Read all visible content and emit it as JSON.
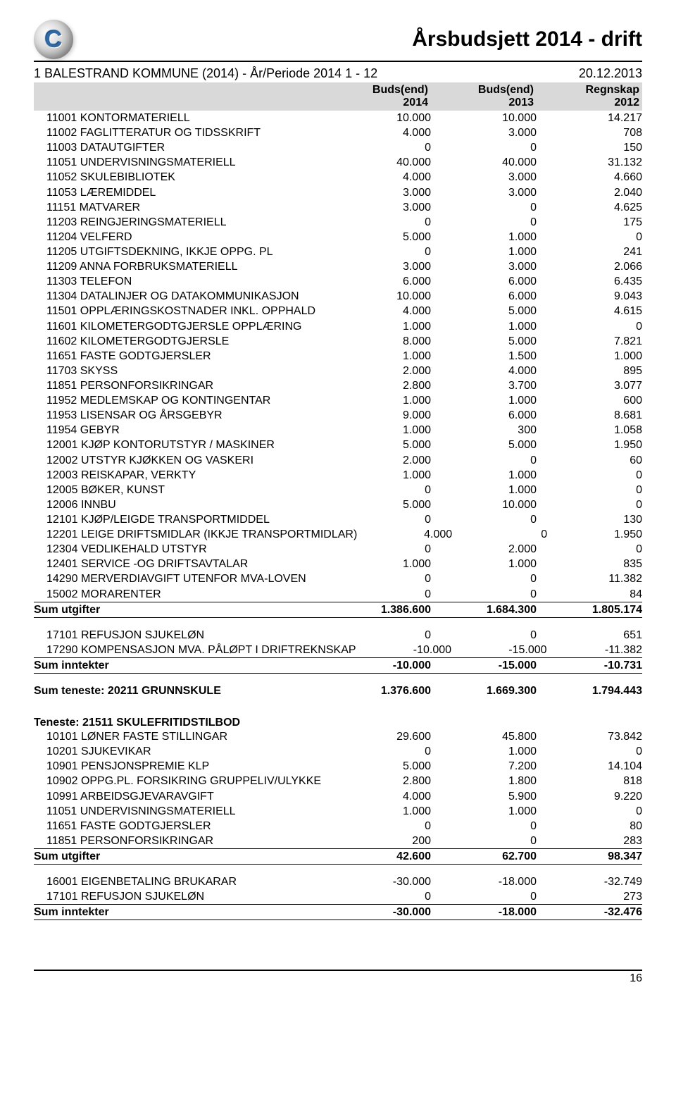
{
  "header": {
    "title": "Årsbudsjett 2014 - drift",
    "subtitle_left": "1 BALESTRAND KOMMUNE (2014) - År/Periode 2014 1 - 12",
    "subtitle_right": "20.12.2013"
  },
  "columns": {
    "c1_l1": "Buds(end)",
    "c1_l2": "2014",
    "c2_l1": "Buds(end)",
    "c2_l2": "2013",
    "c3_l1": "Regnskap",
    "c3_l2": "2012"
  },
  "rows_a": [
    {
      "desc": "11001 KONTORMATERIELL",
      "c1": "10.000",
      "c2": "10.000",
      "c3": "14.217"
    },
    {
      "desc": "11002 FAGLITTERATUR OG TIDSSKRIFT",
      "c1": "4.000",
      "c2": "3.000",
      "c3": "708"
    },
    {
      "desc": "11003 DATAUTGIFTER",
      "c1": "0",
      "c2": "0",
      "c3": "150"
    },
    {
      "desc": "11051 UNDERVISNINGSMATERIELL",
      "c1": "40.000",
      "c2": "40.000",
      "c3": "31.132"
    },
    {
      "desc": "11052 SKULEBIBLIOTEK",
      "c1": "4.000",
      "c2": "3.000",
      "c3": "4.660"
    },
    {
      "desc": "11053 LÆREMIDDEL",
      "c1": "3.000",
      "c2": "3.000",
      "c3": "2.040"
    },
    {
      "desc": "11151 MATVARER",
      "c1": "3.000",
      "c2": "0",
      "c3": "4.625"
    },
    {
      "desc": "11203 REINGJERINGSMATERIELL",
      "c1": "0",
      "c2": "0",
      "c3": "175"
    },
    {
      "desc": "11204 VELFERD",
      "c1": "5.000",
      "c2": "1.000",
      "c3": "0"
    },
    {
      "desc": "11205 UTGIFTSDEKNING, IKKJE OPPG. PL",
      "c1": "0",
      "c2": "1.000",
      "c3": "241"
    },
    {
      "desc": "11209 ANNA FORBRUKSMATERIELL",
      "c1": "3.000",
      "c2": "3.000",
      "c3": "2.066"
    },
    {
      "desc": "11303 TELEFON",
      "c1": "6.000",
      "c2": "6.000",
      "c3": "6.435"
    },
    {
      "desc": "11304 DATALINJER OG DATAKOMMUNIKASJON",
      "c1": "10.000",
      "c2": "6.000",
      "c3": "9.043"
    },
    {
      "desc": "11501 OPPLÆRINGSKOSTNADER INKL. OPPHALD",
      "c1": "4.000",
      "c2": "5.000",
      "c3": "4.615"
    },
    {
      "desc": "11601 KILOMETERGODTGJERSLE OPPLÆRING",
      "c1": "1.000",
      "c2": "1.000",
      "c3": "0"
    },
    {
      "desc": "11602 KILOMETERGODTGJERSLE",
      "c1": "8.000",
      "c2": "5.000",
      "c3": "7.821"
    },
    {
      "desc": "11651 FASTE GODTGJERSLER",
      "c1": "1.000",
      "c2": "1.500",
      "c3": "1.000"
    },
    {
      "desc": "11703 SKYSS",
      "c1": "2.000",
      "c2": "4.000",
      "c3": "895"
    },
    {
      "desc": "11851 PERSONFORSIKRINGAR",
      "c1": "2.800",
      "c2": "3.700",
      "c3": "3.077"
    },
    {
      "desc": "11952 MEDLEMSKAP OG KONTINGENTAR",
      "c1": "1.000",
      "c2": "1.000",
      "c3": "600"
    },
    {
      "desc": "11953 LISENSAR OG ÅRSGEBYR",
      "c1": "9.000",
      "c2": "6.000",
      "c3": "8.681"
    },
    {
      "desc": "11954 GEBYR",
      "c1": "1.000",
      "c2": "300",
      "c3": "1.058"
    },
    {
      "desc": "12001 KJØP KONTORUTSTYR / MASKINER",
      "c1": "5.000",
      "c2": "5.000",
      "c3": "1.950"
    },
    {
      "desc": "12002 UTSTYR KJØKKEN OG VASKERI",
      "c1": "2.000",
      "c2": "0",
      "c3": "60"
    },
    {
      "desc": "12003 REISKAPAR, VERKTY",
      "c1": "1.000",
      "c2": "1.000",
      "c3": "0"
    },
    {
      "desc": "12005 BØKER, KUNST",
      "c1": "0",
      "c2": "1.000",
      "c3": "0"
    },
    {
      "desc": "12006 INNBU",
      "c1": "5.000",
      "c2": "10.000",
      "c3": "0"
    },
    {
      "desc": "12101 KJØP/LEIGDE TRANSPORTMIDDEL",
      "c1": "0",
      "c2": "0",
      "c3": "130"
    },
    {
      "desc": "12201 LEIGE  DRIFTSMIDLAR (IKKJE TRANSPORTMIDLAR)",
      "c1": "4.000",
      "c2": "0",
      "c3": "1.950"
    },
    {
      "desc": "12304 VEDLIKEHALD UTSTYR",
      "c1": "0",
      "c2": "2.000",
      "c3": "0"
    },
    {
      "desc": "12401 SERVICE -OG DRIFTSAVTALAR",
      "c1": "1.000",
      "c2": "1.000",
      "c3": "835"
    },
    {
      "desc": "14290 MERVERDIAVGIFT UTENFOR MVA-LOVEN",
      "c1": "0",
      "c2": "0",
      "c3": "11.382"
    },
    {
      "desc": "15002 MORARENTER",
      "c1": "0",
      "c2": "0",
      "c3": "84"
    }
  ],
  "sum_a": {
    "desc": "Sum utgifter",
    "c1": "1.386.600",
    "c2": "1.684.300",
    "c3": "1.805.174"
  },
  "rows_b": [
    {
      "desc": "17101 REFUSJON SJUKELØN",
      "c1": "0",
      "c2": "0",
      "c3": "651"
    },
    {
      "desc": "17290 KOMPENSASJON MVA. PÅLØPT I DRIFTREKNSKAP",
      "c1": "-10.000",
      "c2": "-15.000",
      "c3": "-11.382"
    }
  ],
  "sum_b": {
    "desc": "Sum inntekter",
    "c1": "-10.000",
    "c2": "-15.000",
    "c3": "-10.731"
  },
  "sum_teneste": {
    "desc": "Sum teneste: 20211 GRUNNSKULE",
    "c1": "1.376.600",
    "c2": "1.669.300",
    "c3": "1.794.443"
  },
  "section_c_title": "Teneste: 21511 SKULEFRITIDSTILBOD",
  "rows_c": [
    {
      "desc": "10101 LØNER FASTE STILLINGAR",
      "c1": "29.600",
      "c2": "45.800",
      "c3": "73.842"
    },
    {
      "desc": "10201 SJUKEVIKAR",
      "c1": "0",
      "c2": "1.000",
      "c3": "0"
    },
    {
      "desc": "10901 PENSJONSPREMIE KLP",
      "c1": "5.000",
      "c2": "7.200",
      "c3": "14.104"
    },
    {
      "desc": "10902 OPPG.PL. FORSIKRING GRUPPELIV/ULYKKE",
      "c1": "2.800",
      "c2": "1.800",
      "c3": "818"
    },
    {
      "desc": "10991 ARBEIDSGJEVARAVGIFT",
      "c1": "4.000",
      "c2": "5.900",
      "c3": "9.220"
    },
    {
      "desc": "11051 UNDERVISNINGSMATERIELL",
      "c1": "1.000",
      "c2": "1.000",
      "c3": "0"
    },
    {
      "desc": "11651 FASTE GODTGJERSLER",
      "c1": "0",
      "c2": "0",
      "c3": "80"
    },
    {
      "desc": "11851 PERSONFORSIKRINGAR",
      "c1": "200",
      "c2": "0",
      "c3": "283"
    }
  ],
  "sum_c": {
    "desc": "Sum utgifter",
    "c1": "42.600",
    "c2": "62.700",
    "c3": "98.347"
  },
  "rows_d": [
    {
      "desc": "16001 EIGENBETALING BRUKARAR",
      "c1": "-30.000",
      "c2": "-18.000",
      "c3": "-32.749"
    },
    {
      "desc": "17101 REFUSJON SJUKELØN",
      "c1": "0",
      "c2": "0",
      "c3": "273"
    }
  ],
  "sum_d": {
    "desc": "Sum inntekter",
    "c1": "-30.000",
    "c2": "-18.000",
    "c3": "-32.476"
  },
  "footer": {
    "page": "16"
  }
}
